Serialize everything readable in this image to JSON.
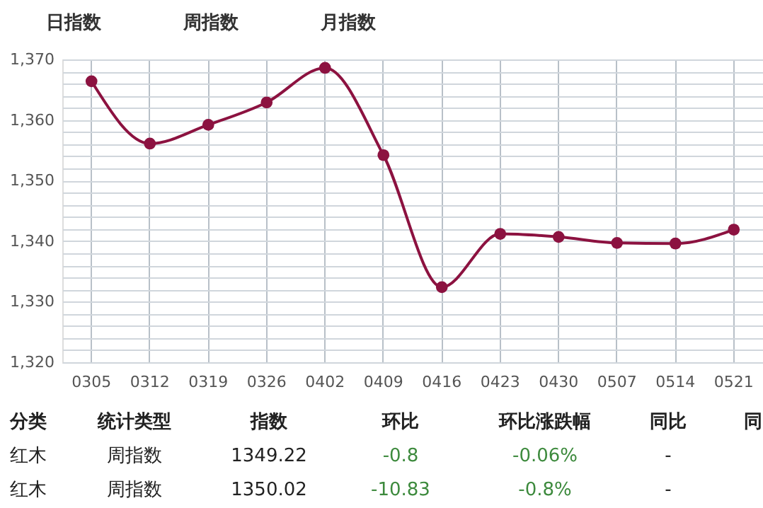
{
  "chart_data": {
    "type": "line",
    "categories": [
      "0305",
      "0312",
      "0319",
      "0326",
      "0402",
      "0409",
      "0416",
      "0423",
      "0430",
      "0507",
      "0514",
      "0521"
    ],
    "series": [
      {
        "color": "#8c1240",
        "values": [
          1366.4,
          1356.1,
          1359.2,
          1362.9,
          1368.6,
          1354.2,
          1332.4,
          1341.2,
          1340.7,
          1339.7,
          1339.6,
          1341.9
        ]
      }
    ],
    "ylim": [
      1320,
      1370
    ],
    "yticks": [
      {
        "value": 1320,
        "label": "1,320"
      },
      {
        "value": 1322,
        "label": null
      },
      {
        "value": 1324,
        "label": null
      },
      {
        "value": 1326,
        "label": null
      },
      {
        "value": 1328,
        "label": null
      },
      {
        "value": 1330,
        "label": "1,330"
      },
      {
        "value": 1332,
        "label": null
      },
      {
        "value": 1334,
        "label": null
      },
      {
        "value": 1336,
        "label": null
      },
      {
        "value": 1338,
        "label": null
      },
      {
        "value": 1340,
        "label": "1,340"
      },
      {
        "value": 1342,
        "label": null
      },
      {
        "value": 1344,
        "label": null
      },
      {
        "value": 1346,
        "label": null
      },
      {
        "value": 1348,
        "label": null
      },
      {
        "value": 1350,
        "label": "1,350"
      },
      {
        "value": 1352,
        "label": null
      },
      {
        "value": 1354,
        "label": null
      },
      {
        "value": 1356,
        "label": null
      },
      {
        "value": 1358,
        "label": null
      },
      {
        "value": 1360,
        "label": "1,360"
      },
      {
        "value": 1362,
        "label": null
      },
      {
        "value": 1364,
        "label": null
      },
      {
        "value": 1366,
        "label": null
      },
      {
        "value": 1368,
        "label": null
      },
      {
        "value": 1370,
        "label": "1,370"
      }
    ],
    "grid": true,
    "marker": "circle",
    "line_style": "solid",
    "legend": false,
    "annotations": [
      "日指数",
      "周指数",
      "月指数",
      "分类",
      "统计类型",
      "指数",
      "环比",
      "环比涨跌幅",
      "同比",
      "同",
      "红木",
      "周指数",
      "1349.22",
      "-0.8",
      "-0.06%",
      "-",
      "红木",
      "周指数",
      "1350.02",
      "-10.83",
      "-0.8%",
      "-"
    ]
  }
}
